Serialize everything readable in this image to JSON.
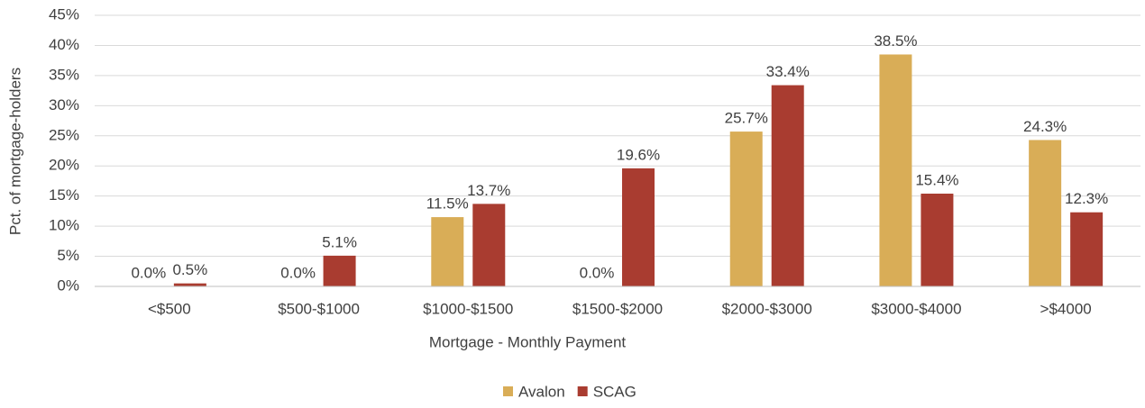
{
  "chart_data": {
    "type": "bar",
    "x_label": "Mortgage - Monthly Payment",
    "y_label": "Pct. of mortgage-holders",
    "categories": [
      "<$500",
      "$500-$1000",
      "$1000-$1500",
      "$1500-$2000",
      "$2000-$3000",
      "$3000-$4000",
      ">$4000"
    ],
    "series": [
      {
        "name": "Avalon",
        "color": "#d9ad57",
        "values": [
          0,
          0,
          11.5,
          0,
          25.7,
          38.5,
          24.3
        ],
        "value_labels": [
          "0.0%",
          "0.0%",
          "11.5%",
          "0.0%",
          "25.7%",
          "38.5%",
          "24.3%"
        ]
      },
      {
        "name": "SCAG",
        "color": "#a93c30",
        "values": [
          0.5,
          5.1,
          13.7,
          19.6,
          33.4,
          15.4,
          12.3
        ],
        "value_labels": [
          "0.5%",
          "5.1%",
          "13.7%",
          "19.6%",
          "33.4%",
          "15.4%",
          "12.3%"
        ]
      }
    ],
    "ylim": [
      0,
      45
    ],
    "yticks": [
      {
        "value": 0,
        "label": "0%"
      },
      {
        "value": 5,
        "label": "5%"
      },
      {
        "value": 10,
        "label": "10%"
      },
      {
        "value": 15,
        "label": "15%"
      },
      {
        "value": 20,
        "label": "20%"
      },
      {
        "value": 25,
        "label": "25%"
      },
      {
        "value": 30,
        "label": "30%"
      },
      {
        "value": 35,
        "label": "35%"
      },
      {
        "value": 40,
        "label": "40%"
      },
      {
        "value": 45,
        "label": "45%"
      }
    ],
    "grid": true,
    "legend": "bottom"
  }
}
